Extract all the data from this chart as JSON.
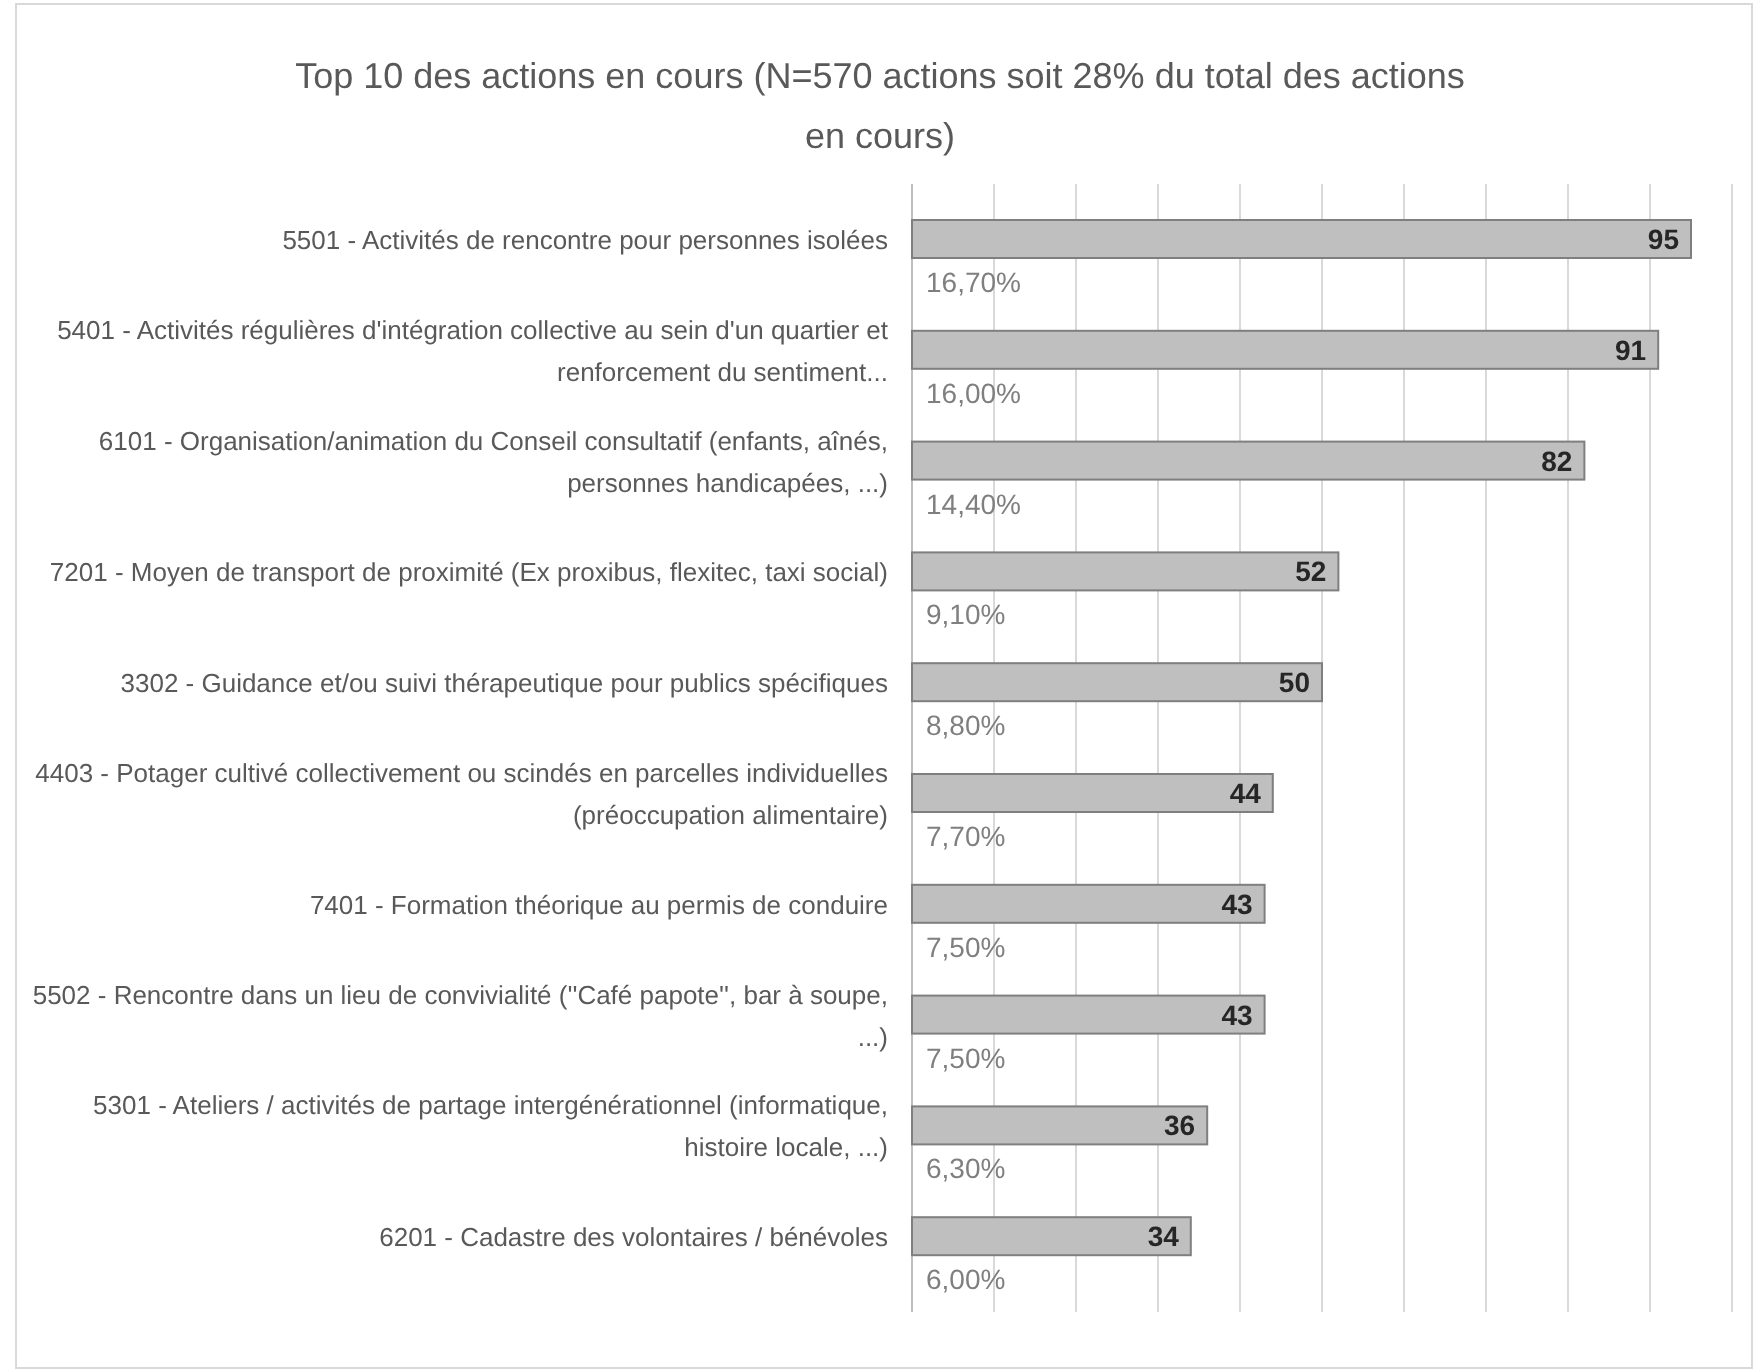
{
  "chart_data": {
    "type": "bar",
    "orientation": "horizontal",
    "title": "Top 10 des actions en cours (N=570 actions soit 28% du total des actions en cours)",
    "categories": [
      "5501 - Activités de rencontre pour personnes isolées",
      "5401 - Activités régulières d'intégration collective au sein d'un quartier et renforcement du sentiment...",
      "6101 - Organisation/animation du Conseil consultatif (enfants, aînés, personnes handicapées, ...)",
      "7201 - Moyen de transport de proximité (Ex proxibus, flexitec, taxi social)",
      "3302 - Guidance et/ou suivi thérapeutique pour publics spécifiques",
      "4403 - Potager cultivé collectivement ou scindés en parcelles individuelles (préoccupation alimentaire)",
      "7401 - Formation théorique au permis de conduire",
      "5502 - Rencontre dans un lieu de convivialité (''Café papote'', bar à soupe, ...)",
      "5301 - Ateliers / activités de partage intergénérationnel (informatique, histoire locale, ...)",
      "6201 - Cadastre des volontaires / bénévoles"
    ],
    "values": [
      95,
      91,
      82,
      52,
      50,
      44,
      43,
      43,
      36,
      34
    ],
    "color": "#bfbfbf",
    "data_labels": true,
    "annotations": [
      "16,70%",
      "16,00%",
      "14,40%",
      "9,10%",
      "8,80%",
      "7,70%",
      "7,50%",
      "7,50%",
      "6,30%",
      "6,00%"
    ],
    "xlim": [
      0,
      100
    ],
    "xticks": [
      {
        "value": 0,
        "label": null
      },
      {
        "value": 10,
        "label": null
      },
      {
        "value": 20,
        "label": null
      },
      {
        "value": 30,
        "label": null
      },
      {
        "value": 40,
        "label": null
      },
      {
        "value": 50,
        "label": null
      },
      {
        "value": 60,
        "label": null
      },
      {
        "value": 70,
        "label": null
      },
      {
        "value": 80,
        "label": null
      },
      {
        "value": 90,
        "label": null
      },
      {
        "value": 100,
        "label": null
      }
    ],
    "grid": "x",
    "tick_labels": "y"
  }
}
